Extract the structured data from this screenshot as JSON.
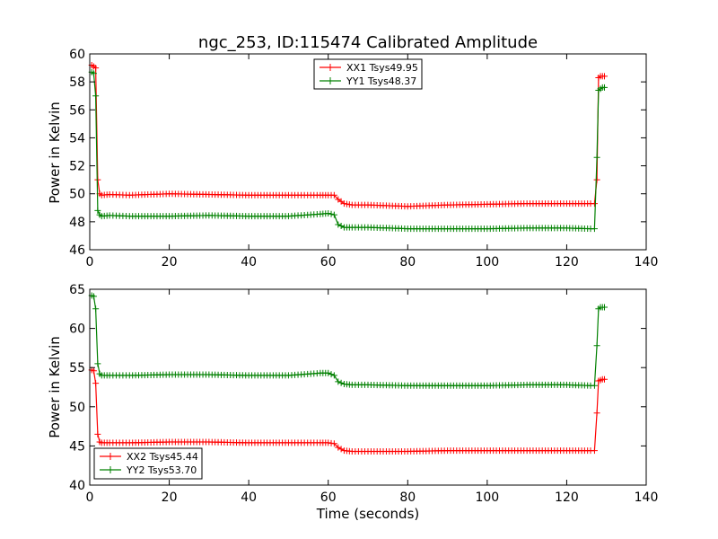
{
  "chart_data": [
    {
      "type": "line",
      "title": "ngc_253, ID:115474 Calibrated Amplitude",
      "xlabel": "",
      "ylabel": "Power in Kelvin",
      "xlim": [
        0,
        140
      ],
      "ylim": [
        46,
        60
      ],
      "xticks": [
        0,
        20,
        40,
        60,
        80,
        100,
        120,
        140
      ],
      "yticks": [
        46,
        48,
        50,
        52,
        54,
        56,
        58,
        60
      ],
      "legend_position": "top-center",
      "series": [
        {
          "name": "XX1 Tsys49.95",
          "color": "#ff0000",
          "marker": "+",
          "x": [
            0.5,
            1,
            1.5,
            2,
            2.5,
            3,
            5,
            10,
            20,
            30,
            40,
            50,
            58,
            60,
            61.5,
            62.5,
            64,
            66,
            70,
            80,
            90,
            100,
            110,
            120,
            126,
            127,
            127.6,
            128,
            128.5,
            129,
            129.5
          ],
          "y": [
            59.2,
            59.1,
            59.0,
            51.0,
            50.0,
            49.9,
            49.95,
            49.9,
            50.0,
            49.95,
            49.9,
            49.9,
            49.9,
            49.9,
            49.9,
            49.6,
            49.3,
            49.2,
            49.2,
            49.1,
            49.2,
            49.25,
            49.3,
            49.3,
            49.3,
            49.3,
            51.0,
            58.3,
            58.4,
            58.4,
            58.4
          ]
        },
        {
          "name": "YY1 Tsys48.37",
          "color": "#008000",
          "marker": "+",
          "x": [
            0.5,
            1,
            1.5,
            2,
            2.5,
            3,
            5,
            10,
            20,
            30,
            40,
            50,
            58,
            60,
            61.5,
            62.5,
            64,
            66,
            70,
            80,
            90,
            100,
            110,
            120,
            126,
            127,
            127.6,
            128,
            128.5,
            129,
            129.5
          ],
          "y": [
            58.7,
            58.6,
            57.0,
            48.8,
            48.5,
            48.4,
            48.45,
            48.4,
            48.4,
            48.45,
            48.4,
            48.4,
            48.55,
            48.6,
            48.5,
            47.8,
            47.6,
            47.6,
            47.6,
            47.5,
            47.5,
            47.5,
            47.55,
            47.55,
            47.5,
            47.5,
            52.6,
            57.4,
            57.5,
            57.6,
            57.6
          ]
        }
      ]
    },
    {
      "type": "line",
      "title": "",
      "xlabel": "Time (seconds)",
      "ylabel": "Power in Kelvin",
      "xlim": [
        0,
        140
      ],
      "ylim": [
        40,
        65
      ],
      "xticks": [
        0,
        20,
        40,
        60,
        80,
        100,
        120,
        140
      ],
      "yticks": [
        40,
        45,
        50,
        55,
        60,
        65
      ],
      "legend_position": "lower-left",
      "series": [
        {
          "name": "XX2 Tsys45.44",
          "color": "#ff0000",
          "marker": "+",
          "x": [
            0.5,
            1,
            1.5,
            2,
            2.5,
            3,
            5,
            10,
            20,
            30,
            40,
            50,
            58,
            60,
            61.5,
            62.5,
            64,
            66,
            70,
            80,
            90,
            100,
            110,
            120,
            126,
            127,
            127.6,
            128,
            128.5,
            129,
            129.5
          ],
          "y": [
            54.7,
            54.6,
            53.0,
            46.5,
            45.5,
            45.4,
            45.4,
            45.4,
            45.5,
            45.5,
            45.4,
            45.4,
            45.4,
            45.4,
            45.3,
            44.8,
            44.4,
            44.3,
            44.3,
            44.3,
            44.4,
            44.4,
            44.4,
            44.4,
            44.4,
            44.4,
            49.2,
            53.3,
            53.4,
            53.5,
            53.5
          ]
        },
        {
          "name": "YY2 Tsys53.70",
          "color": "#008000",
          "marker": "+",
          "x": [
            0.5,
            1,
            1.5,
            2,
            2.5,
            3,
            5,
            10,
            20,
            30,
            40,
            50,
            58,
            60,
            61.5,
            62.5,
            64,
            66,
            70,
            80,
            90,
            100,
            110,
            120,
            126,
            127,
            127.6,
            128,
            128.5,
            129,
            129.5
          ],
          "y": [
            64.2,
            64.1,
            62.5,
            55.5,
            54.2,
            54.0,
            54.0,
            54.0,
            54.1,
            54.1,
            54.0,
            54.0,
            54.3,
            54.3,
            54.0,
            53.2,
            52.9,
            52.8,
            52.8,
            52.7,
            52.7,
            52.7,
            52.8,
            52.8,
            52.7,
            52.7,
            57.8,
            62.5,
            62.7,
            62.7,
            62.7
          ]
        }
      ]
    }
  ]
}
